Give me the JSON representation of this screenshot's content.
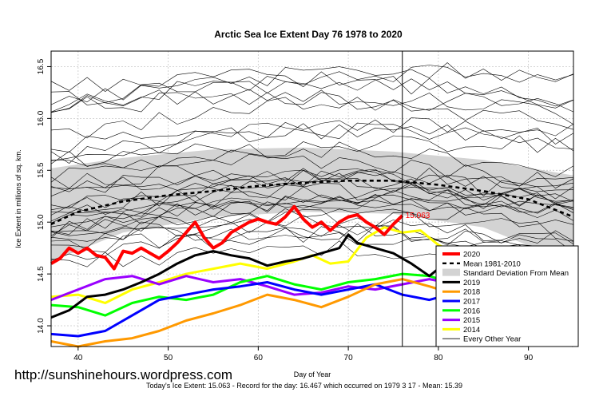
{
  "chart_data": {
    "type": "line",
    "title": "Arctic Sea Ice Extent Day 76 1978 to 2020",
    "xlabel": "Day of Year",
    "ylabel": "Ice Extent in millions of sq. km.",
    "xlim": [
      37,
      95
    ],
    "ylim": [
      13.8,
      16.65
    ],
    "x_ticks": [
      "40",
      "50",
      "60",
      "70",
      "80",
      "90"
    ],
    "y_ticks": [
      "14.0",
      "14.5",
      "15.0",
      "15.5",
      "16.0",
      "16.5"
    ],
    "grid": true,
    "legend_position": "right",
    "current_day": 76,
    "current_label": "15.063",
    "footer": "Today's Ice Extent: 15.063  - Record for the day: 16.467 which occurred on 1979 3 17  - Mean: 15.39",
    "watermark": "http://sunshinehours.wordpress.com",
    "std_band": {
      "name": "Standard Deviation From Mean",
      "color": "#d3d3d3",
      "x": [
        37,
        45,
        55,
        65,
        75,
        85,
        95
      ],
      "upper": [
        15.52,
        15.62,
        15.7,
        15.72,
        15.68,
        15.6,
        15.45
      ],
      "lower": [
        14.62,
        14.9,
        15.05,
        15.1,
        15.08,
        14.95,
        14.6
      ]
    },
    "mean_series": {
      "name": "Mean 1981-2010",
      "color": "#000000",
      "x": [
        37,
        40,
        45,
        50,
        55,
        60,
        65,
        70,
        75,
        80,
        85,
        90,
        95
      ],
      "values": [
        14.98,
        15.1,
        15.2,
        15.26,
        15.3,
        15.35,
        15.38,
        15.4,
        15.4,
        15.36,
        15.3,
        15.22,
        15.05
      ]
    },
    "series": [
      {
        "name": "2020",
        "color": "#ff0000",
        "width": 4,
        "x": [
          37,
          38,
          39,
          40,
          41,
          42,
          43,
          44,
          45,
          46,
          47,
          48,
          49,
          50,
          51,
          52,
          53,
          54,
          55,
          56,
          57,
          58,
          59,
          60,
          61,
          62,
          63,
          64,
          65,
          66,
          67,
          68,
          69,
          70,
          71,
          72,
          73,
          74,
          75,
          76
        ],
        "values": [
          14.6,
          14.65,
          14.75,
          14.7,
          14.75,
          14.68,
          14.66,
          14.55,
          14.72,
          14.7,
          14.75,
          14.7,
          14.65,
          14.72,
          14.8,
          14.9,
          15.0,
          14.85,
          14.75,
          14.8,
          14.9,
          14.95,
          15.0,
          15.03,
          15.0,
          14.98,
          15.05,
          15.15,
          15.03,
          14.95,
          15.0,
          14.92,
          15.0,
          15.05,
          15.07,
          15.0,
          14.95,
          14.88,
          14.98,
          15.063
        ]
      },
      {
        "name": "2019",
        "color": "#000000",
        "width": 3,
        "x": [
          37,
          39,
          41,
          43,
          45,
          47,
          49,
          51,
          53,
          55,
          57,
          59,
          61,
          63,
          65,
          67,
          69,
          70,
          71,
          73,
          75,
          77,
          79,
          81,
          83,
          85,
          87,
          89,
          91,
          93,
          95
        ],
        "values": [
          14.08,
          14.15,
          14.28,
          14.3,
          14.35,
          14.42,
          14.5,
          14.6,
          14.68,
          14.72,
          14.68,
          14.65,
          14.58,
          14.62,
          14.65,
          14.7,
          14.75,
          14.88,
          14.8,
          14.75,
          14.7,
          14.6,
          14.48,
          14.62,
          14.5,
          14.35,
          14.25,
          14.15,
          14.05,
          14.02,
          13.8
        ]
      },
      {
        "name": "2018",
        "color": "#ff9900",
        "width": 3,
        "x": [
          37,
          40,
          43,
          46,
          49,
          52,
          55,
          58,
          61,
          64,
          67,
          70,
          73,
          76,
          79,
          82,
          85,
          88,
          91,
          93,
          95
        ],
        "values": [
          13.85,
          13.8,
          13.85,
          13.88,
          13.95,
          14.05,
          14.12,
          14.2,
          14.3,
          14.25,
          14.18,
          14.28,
          14.4,
          14.45,
          14.38,
          14.3,
          14.22,
          14.2,
          14.1,
          14.05,
          13.98
        ]
      },
      {
        "name": "2017",
        "color": "#0000ff",
        "width": 3,
        "x": [
          37,
          40,
          43,
          46,
          49,
          52,
          55,
          58,
          61,
          64,
          67,
          70,
          73,
          76,
          79,
          82,
          85,
          88,
          91,
          94,
          95
        ],
        "values": [
          13.92,
          13.9,
          13.95,
          14.1,
          14.25,
          14.3,
          14.35,
          14.38,
          14.42,
          14.35,
          14.3,
          14.35,
          14.4,
          14.3,
          14.25,
          14.32,
          14.3,
          14.28,
          14.22,
          14.12,
          14.1
        ]
      },
      {
        "name": "2016",
        "color": "#00ff00",
        "width": 3,
        "x": [
          37,
          40,
          43,
          46,
          49,
          52,
          55,
          58,
          61,
          64,
          67,
          70,
          73,
          76,
          79,
          82,
          85,
          88,
          91,
          93,
          95
        ],
        "values": [
          14.2,
          14.18,
          14.1,
          14.22,
          14.28,
          14.25,
          14.3,
          14.42,
          14.48,
          14.4,
          14.35,
          14.42,
          14.45,
          14.5,
          14.48,
          14.4,
          14.3,
          14.15,
          14.08,
          14.05,
          14.05
        ]
      },
      {
        "name": "2015",
        "color": "#9900ff",
        "width": 3,
        "x": [
          37,
          40,
          43,
          46,
          49,
          52,
          55,
          58,
          61,
          64,
          67,
          70,
          73,
          76,
          79,
          82,
          85,
          88,
          91,
          93,
          95
        ],
        "values": [
          14.25,
          14.35,
          14.45,
          14.48,
          14.4,
          14.48,
          14.42,
          14.45,
          14.38,
          14.3,
          14.32,
          14.38,
          14.35,
          14.4,
          14.45,
          14.4,
          14.3,
          14.2,
          14.12,
          14.15,
          14.1
        ]
      },
      {
        "name": "2014",
        "color": "#ffff00",
        "width": 3,
        "x": [
          37,
          40,
          43,
          46,
          49,
          52,
          55,
          58,
          61,
          64,
          66,
          68,
          70,
          72,
          74,
          76,
          78,
          80,
          82,
          85,
          88,
          90,
          92,
          95
        ],
        "values": [
          14.28,
          14.3,
          14.22,
          14.35,
          14.42,
          14.5,
          14.55,
          14.6,
          14.55,
          14.62,
          14.68,
          14.6,
          14.62,
          14.85,
          14.95,
          14.9,
          14.92,
          14.78,
          14.7,
          14.72,
          14.65,
          14.62,
          14.55,
          14.6
        ]
      }
    ],
    "other_years": {
      "name": "Every Other Year",
      "color": "#000000",
      "count": 34,
      "x": [
        37,
        42,
        47,
        52,
        57,
        62,
        67,
        72,
        77,
        82,
        87,
        92,
        95
      ]
    },
    "legend": [
      "2020",
      "Mean 1981-2010",
      "Standard Deviation From Mean",
      "2019",
      "2018",
      "2017",
      "2016",
      "2015",
      "2014",
      "Every Other Year"
    ]
  }
}
